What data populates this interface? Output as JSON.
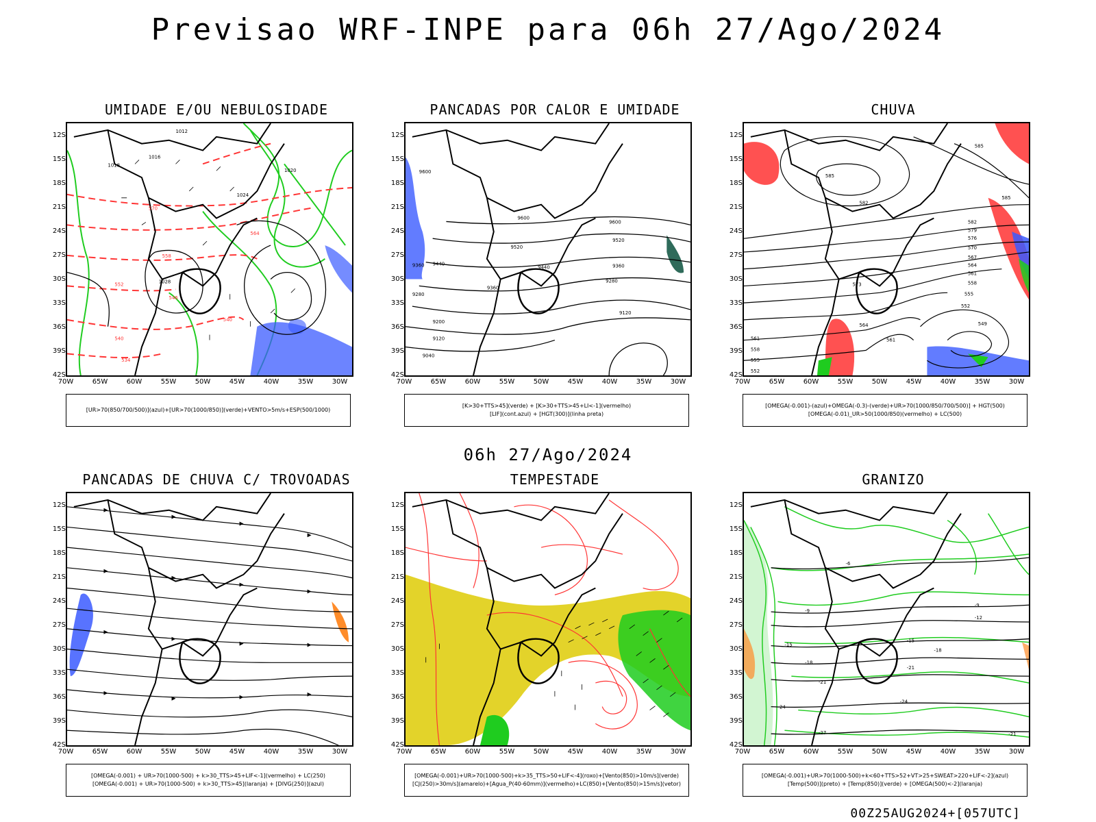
{
  "main_title": "Previsao WRF-INPE  para 06h 27/Ago/2024",
  "subtitle": "06h 27/Ago/2024",
  "run_stamp": "00Z25AUG2024+[057UTC]",
  "lat_labels": [
    "12S",
    "15S",
    "18S",
    "21S",
    "24S",
    "27S",
    "30S",
    "33S",
    "36S",
    "39S",
    "42S"
  ],
  "lon_labels": [
    "70W",
    "65W",
    "60W",
    "55W",
    "50W",
    "45W",
    "40W",
    "35W",
    "30W"
  ],
  "colors": {
    "blue": "#3b5bff",
    "green": "#1fcc1f",
    "red": "#ff3333",
    "yellow": "#e3d32a",
    "orange": "#ff8c2a",
    "teal": "#2f6b5a"
  },
  "panels": [
    {
      "title": "UMIDADE E/OU NEBULOSIDADE",
      "legend_line1": "[UR>70(850/700/500)](azul)+[UR>70(1000/850)](verde)+VENTO>5m/s+ESP(500/1000)",
      "legend_line2": "",
      "contour_labels": [
        "1012",
        "1016",
        "1018",
        "1020",
        "1024",
        "1028",
        "570",
        "564",
        "558",
        "552",
        "546",
        "540",
        "534"
      ]
    },
    {
      "title": "PANCADAS POR CALOR E UMIDADE",
      "legend_line1": "[K>30+TTS>45](verde) + [K>30+TTS>45+LI<-1](vermelho)",
      "legend_line2": "[LIF](cont.azul) + [HGT(300)](linha preta)",
      "contour_labels": [
        "9600",
        "9520",
        "9440",
        "9360",
        "9280",
        "9200",
        "9120",
        "9040"
      ]
    },
    {
      "title": "CHUVA",
      "legend_line1": "[OMEGA(-0.001)-(azul)+OMEGA(-0.3)-(verde)+UR>70(1000/850/700/500)] + HGT(500)",
      "legend_line2": "[OMEGA(-0.01)_UR>50(1000/850)(vermelho) + LC(500)",
      "contour_labels": [
        "585",
        "582",
        "579",
        "576",
        "573",
        "570",
        "567",
        "564",
        "561",
        "558",
        "555",
        "552",
        "549",
        "546"
      ]
    },
    {
      "title": "PANCADAS DE CHUVA C/ TROVOADAS",
      "legend_line1": "[OMEGA(-0.001) + UR>70(1000-500) + k>30_TTS>45+LIF<-1](vermelho) + LC(250)",
      "legend_line2": "[OMEGA(-0.001) + UR>70(1000-500) + k>30_TTS>45](laranja) + [DIVG(250)](azul)",
      "contour_labels": []
    },
    {
      "title": "TEMPESTADE",
      "legend_line1": "[OMEGA(-0.001)+UR>70(1000-500)+k>35_TTS>50+LIF<-4](roxo)+[Vento(850)>10m/s](verde)",
      "legend_line2": "[CJ(250)>30m/s](amarelo)+[Agua_P(40-60mm)](vermelho)+LC(850)+[Vento(850)>15m/s](vetor)",
      "contour_labels": []
    },
    {
      "title": "GRANIZO",
      "legend_line1": "[OMEGA(-0.001)+UR>70(1000-500)+k<60+TTS>52+VT>25+SWEAT>220+LIF<-2](azul)",
      "legend_line2": "[Temp(500)](preto) + [Temp(850)](verde) + [OMEGA(500)<-2](laranja)",
      "contour_labels": [
        "-3",
        "-6",
        "-9",
        "-12",
        "-15",
        "-18",
        "-21",
        "-24",
        "-27"
      ]
    }
  ]
}
